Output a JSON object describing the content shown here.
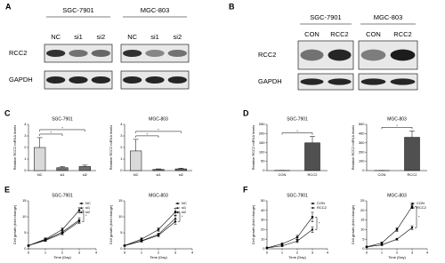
{
  "blots": [
    {
      "label": "A",
      "rows": [
        "RCC2",
        "GAPDH"
      ],
      "groups": [
        {
          "name": "SGC-7901",
          "lanes": [
            "NC",
            "si1",
            "si2"
          ]
        },
        {
          "name": "MGC-803",
          "lanes": [
            "NC",
            "si1",
            "si2"
          ]
        }
      ]
    },
    {
      "label": "B",
      "rows": [
        "RCC2",
        "GAPDH"
      ],
      "groups": [
        {
          "name": "SGC-7901",
          "lanes": [
            "CON",
            "RCC2"
          ]
        },
        {
          "name": "MGC-803",
          "lanes": [
            "CON",
            "RCC2"
          ]
        }
      ]
    }
  ],
  "chart_data": [
    {
      "type": "bar",
      "panel": "C",
      "title": "SGC-7901",
      "y_label": "Relative RCC2 mRNA levels",
      "categories": [
        "NC",
        "si1",
        "si2"
      ],
      "values": [
        2.0,
        0.25,
        0.35
      ],
      "errors": [
        0.85,
        0.1,
        0.12
      ],
      "colors": [
        "#d9d9d9",
        "#707070",
        "#707070"
      ],
      "ylim": [
        0,
        4
      ],
      "yticks": [
        0,
        1,
        2,
        3,
        4
      ],
      "significance": [
        {
          "from": 0,
          "to": 1,
          "label": "*"
        },
        {
          "from": 0,
          "to": 2,
          "label": "*"
        }
      ]
    },
    {
      "type": "bar",
      "title": "MGC-803",
      "y_label": "Relative RCC2 mRNA levels",
      "categories": [
        "NC",
        "si1",
        "si2"
      ],
      "values": [
        1.7,
        0.1,
        0.15
      ],
      "errors": [
        1.0,
        0.05,
        0.06
      ],
      "colors": [
        "#d9d9d9",
        "#707070",
        "#707070"
      ],
      "ylim": [
        0,
        4
      ],
      "yticks": [
        0,
        1,
        2,
        3,
        4
      ],
      "significance": [
        {
          "from": 0,
          "to": 1,
          "label": "*"
        },
        {
          "from": 0,
          "to": 2,
          "label": "*"
        }
      ]
    },
    {
      "type": "bar",
      "panel": "D",
      "title": "SGC-7901",
      "y_label": "Relative RCC2 mRNA levels",
      "categories": [
        "CON",
        "RCC2"
      ],
      "values": [
        1,
        150
      ],
      "errors": [
        0.5,
        35
      ],
      "colors": [
        "#ffffff",
        "#505050"
      ],
      "ylim": [
        0,
        250
      ],
      "yticks": [
        0,
        50,
        100,
        150,
        200,
        250
      ],
      "significance": [
        {
          "from": 0,
          "to": 1,
          "label": "*"
        }
      ]
    },
    {
      "type": "bar",
      "title": "MGC-803",
      "y_label": "Relative RCC2 mRNA levels",
      "categories": [
        "CON",
        "RCC2"
      ],
      "values": [
        1,
        360
      ],
      "errors": [
        0.5,
        70
      ],
      "colors": [
        "#ffffff",
        "#505050"
      ],
      "ylim": [
        0,
        500
      ],
      "yticks": [
        0,
        100,
        200,
        300,
        400,
        500
      ],
      "significance": [
        {
          "from": 0,
          "to": 1,
          "label": "*"
        }
      ]
    },
    {
      "type": "line",
      "panel": "E",
      "title": "SGC-7901",
      "x_label": "Time (Day)",
      "y_label": "Cell growth (fold change)",
      "x": [
        0,
        1,
        2,
        3
      ],
      "xlim": [
        0,
        4
      ],
      "xticks": [
        0,
        1,
        2,
        3,
        4
      ],
      "ylim": [
        0,
        15
      ],
      "yticks": [
        0,
        5,
        10,
        15
      ],
      "annotations": [
        "*"
      ],
      "series": [
        {
          "name": "NC",
          "color": "#000000",
          "marker": "square",
          "values": [
            1,
            3,
            6,
            12
          ],
          "errors": [
            0,
            0.4,
            0.5,
            0.8
          ]
        },
        {
          "name": "si1",
          "color": "#000000",
          "marker": "triangle",
          "values": [
            1,
            2.8,
            5.2,
            9
          ],
          "errors": [
            0,
            0.3,
            0.5,
            0.7
          ]
        },
        {
          "name": "si2",
          "color": "#000000",
          "marker": "circle",
          "values": [
            1,
            2.6,
            4.8,
            8.5
          ],
          "errors": [
            0,
            0.3,
            0.4,
            0.6
          ]
        }
      ]
    },
    {
      "type": "line",
      "title": "MGC-803",
      "x_label": "Time (Day)",
      "y_label": "Cell growth (fold change)",
      "x": [
        0,
        1,
        2,
        3
      ],
      "xlim": [
        0,
        4
      ],
      "xticks": [
        0,
        1,
        2,
        3,
        4
      ],
      "ylim": [
        0,
        15
      ],
      "yticks": [
        0,
        5,
        10,
        15
      ],
      "annotations": [
        "*"
      ],
      "series": [
        {
          "name": "NC",
          "color": "#000000",
          "marker": "square",
          "values": [
            1,
            3,
            6,
            11.5
          ],
          "errors": [
            0,
            0.4,
            0.5,
            1.2
          ]
        },
        {
          "name": "si1",
          "color": "#000000",
          "marker": "triangle",
          "values": [
            1,
            2.5,
            4.5,
            9.5
          ],
          "errors": [
            0,
            0.3,
            0.4,
            1
          ]
        },
        {
          "name": "si2",
          "color": "#000000",
          "marker": "circle",
          "values": [
            1,
            2.4,
            4.2,
            8.5
          ],
          "errors": [
            0,
            0.3,
            0.4,
            0.8
          ]
        }
      ]
    },
    {
      "type": "line",
      "panel": "F",
      "title": "SGC-7901",
      "x_label": "Time (Day)",
      "y_label": "Cell growth (fold change)",
      "x": [
        0,
        1,
        2,
        3
      ],
      "xlim": [
        0,
        4
      ],
      "xticks": [
        0,
        1,
        2,
        3,
        4
      ],
      "ylim": [
        0,
        50
      ],
      "yticks": [
        0,
        10,
        20,
        30,
        40,
        50
      ],
      "annotations": [
        "*"
      ],
      "series": [
        {
          "name": "CON",
          "color": "#000000",
          "marker": "square",
          "values": [
            1,
            5,
            12,
            33
          ],
          "errors": [
            0,
            1,
            2,
            5
          ]
        },
        {
          "name": "RCC2",
          "color": "#000000",
          "marker": "circle",
          "values": [
            1,
            3,
            8,
            20
          ],
          "errors": [
            0,
            0.6,
            1.5,
            3
          ]
        }
      ]
    },
    {
      "type": "line",
      "title": "MGC-803",
      "x_label": "Time (Day)",
      "y_label": "Cell growth (fold change)",
      "x": [
        0,
        1,
        2,
        3
      ],
      "xlim": [
        0,
        4
      ],
      "xticks": [
        0,
        1,
        2,
        3,
        4
      ],
      "ylim": [
        0,
        25
      ],
      "yticks": [
        0,
        5,
        10,
        15,
        20,
        25
      ],
      "annotations": [
        "*"
      ],
      "series": [
        {
          "name": "CON",
          "color": "#000000",
          "marker": "square",
          "values": [
            1,
            3,
            10,
            22
          ],
          "errors": [
            0,
            0.5,
            1,
            1
          ]
        },
        {
          "name": "RCC2",
          "color": "#000000",
          "marker": "circle",
          "values": [
            1,
            2,
            5,
            11
          ],
          "errors": [
            0,
            0.3,
            0.5,
            1
          ]
        }
      ]
    }
  ]
}
